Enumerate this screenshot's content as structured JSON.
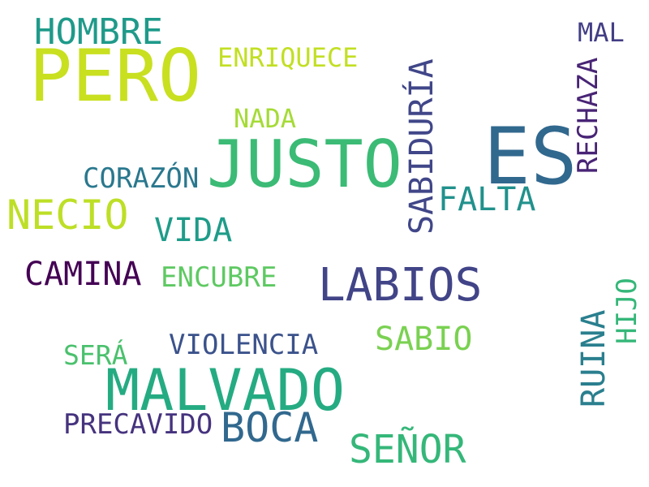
{
  "words": [
    {
      "text": "PERO",
      "color": "#c8e020"
    },
    {
      "text": "HOMBRE",
      "color": "#1f9a8a"
    },
    {
      "text": "ENRIQUECE",
      "color": "#c2df23"
    },
    {
      "text": "NADA",
      "color": "#a5db36"
    },
    {
      "text": "JUSTO",
      "color": "#3bbb75"
    },
    {
      "text": "ES",
      "color": "#31688e"
    },
    {
      "text": "MAL",
      "color": "#433e85"
    },
    {
      "text": "RECHAZA",
      "color": "#482475"
    },
    {
      "text": "SABIDURÍA",
      "color": "#404688"
    },
    {
      "text": "FALTA",
      "color": "#21918c"
    },
    {
      "text": "CORAZÓN",
      "color": "#2a788e"
    },
    {
      "text": "NECIO",
      "color": "#bddf26"
    },
    {
      "text": "VIDA",
      "color": "#1e9c89"
    },
    {
      "text": "CAMINA",
      "color": "#440154"
    },
    {
      "text": "ENCUBRE",
      "color": "#5ec962"
    },
    {
      "text": "LABIOS",
      "color": "#414487"
    },
    {
      "text": "HIJO",
      "color": "#35b779"
    },
    {
      "text": "RUINA",
      "color": "#2a7f8e"
    },
    {
      "text": "SABIO",
      "color": "#7ad151"
    },
    {
      "text": "VIOLENCIA",
      "color": "#3b528b"
    },
    {
      "text": "SERÁ",
      "color": "#4ac16d"
    },
    {
      "text": "MALVADO",
      "color": "#25ab82"
    },
    {
      "text": "PRECAVIDO",
      "color": "#46337e"
    },
    {
      "text": "BOCA",
      "color": "#31688e"
    },
    {
      "text": "SEÑOR",
      "color": "#35b779"
    }
  ]
}
